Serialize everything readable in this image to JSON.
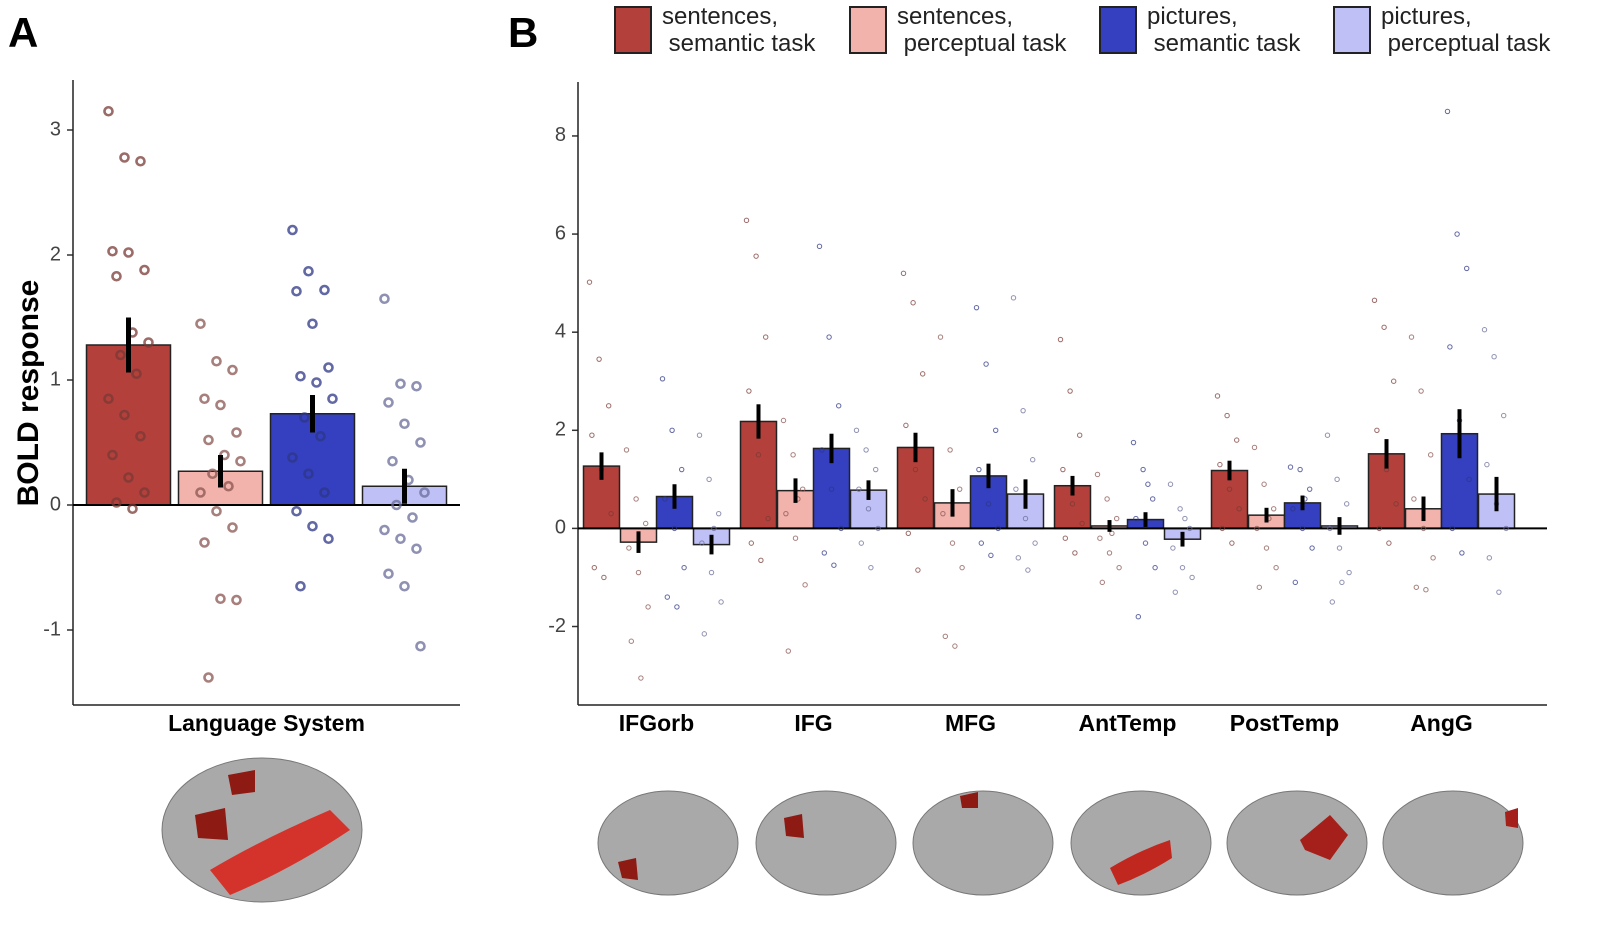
{
  "chart_data": [
    {
      "type": "bar",
      "panel_label": "A",
      "y_label": "BOLD response",
      "categories": [
        "Language System"
      ],
      "ylim": [
        -1.6,
        3.4
      ],
      "yticks": [
        -1,
        0,
        1,
        2,
        3
      ],
      "series": [
        {
          "color": "#b3403b",
          "values": [
            1.28
          ],
          "errors": [
            0.22
          ],
          "points": [
            [
              3.15,
              2.78,
              2.75,
              2.03,
              2.02,
              1.88,
              1.83,
              1.38,
              1.3,
              1.2,
              1.05,
              0.85,
              0.72,
              0.55,
              0.4,
              0.22,
              0.1,
              0.02,
              -0.03
            ]
          ]
        },
        {
          "color": "#f3b3ad",
          "values": [
            0.27
          ],
          "errors": [
            0.13
          ],
          "points": [
            [
              1.45,
              1.15,
              1.08,
              0.85,
              0.8,
              0.58,
              0.52,
              0.4,
              0.35,
              0.25,
              0.15,
              0.1,
              -0.05,
              -0.18,
              -0.3,
              -0.75,
              -0.76,
              -1.38
            ]
          ]
        },
        {
          "color": "#3440bf",
          "values": [
            0.73
          ],
          "errors": [
            0.15
          ],
          "points": [
            [
              2.2,
              1.87,
              1.72,
              1.71,
              1.45,
              1.1,
              1.03,
              0.98,
              0.85,
              0.7,
              0.55,
              0.38,
              0.25,
              0.1,
              -0.05,
              -0.17,
              -0.27,
              -0.65
            ]
          ]
        },
        {
          "color": "#bfc0f6",
          "values": [
            0.15
          ],
          "errors": [
            0.14
          ],
          "points": [
            [
              1.65,
              0.97,
              0.95,
              0.82,
              0.65,
              0.5,
              0.35,
              0.2,
              0.1,
              0.0,
              -0.1,
              -0.2,
              -0.27,
              -0.35,
              -0.55,
              -0.65,
              -1.13
            ]
          ]
        }
      ]
    },
    {
      "type": "bar",
      "panel_label": "B",
      "categories": [
        "IFGorb",
        "IFG",
        "MFG",
        "AntTemp",
        "PostTemp",
        "AngG"
      ],
      "ylim": [
        -3.6,
        9.1
      ],
      "yticks": [
        -2,
        0,
        2,
        4,
        6,
        8
      ],
      "series": [
        {
          "name": "sentences,\n semantic task",
          "color": "#b3403b",
          "values": [
            1.27,
            2.18,
            1.65,
            0.87,
            1.18,
            1.52
          ],
          "errors": [
            0.28,
            0.35,
            0.3,
            0.2,
            0.2,
            0.3
          ],
          "points": [
            [
              5.02,
              3.45,
              2.5,
              1.9,
              1.2,
              0.3,
              -0.8,
              -1.0
            ],
            [
              6.28,
              5.55,
              3.9,
              2.8,
              1.5,
              0.2,
              -0.3,
              -0.65
            ],
            [
              5.2,
              4.6,
              3.15,
              2.1,
              1.2,
              0.6,
              -0.1,
              -0.85
            ],
            [
              3.85,
              2.8,
              1.9,
              1.2,
              0.5,
              0.1,
              -0.2,
              -0.5
            ],
            [
              2.7,
              2.3,
              1.8,
              1.3,
              0.8,
              0.4,
              0.0,
              -0.3
            ],
            [
              4.65,
              4.1,
              3.0,
              2.0,
              1.2,
              0.5,
              0.0,
              -0.3
            ]
          ]
        },
        {
          "name": "sentences,\n perceptual task",
          "color": "#f3b3ad",
          "values": [
            -0.28,
            0.77,
            0.52,
            0.05,
            0.27,
            0.4
          ],
          "errors": [
            0.22,
            0.25,
            0.28,
            0.12,
            0.15,
            0.25
          ],
          "points": [
            [
              1.6,
              0.6,
              0.1,
              -0.4,
              -0.9,
              -1.6,
              -2.3,
              -3.05
            ],
            [
              2.2,
              1.5,
              0.8,
              0.3,
              -0.2,
              -1.15,
              -2.5,
              0.6
            ],
            [
              3.9,
              1.6,
              0.8,
              0.3,
              -0.3,
              -0.8,
              -2.2,
              -2.4
            ],
            [
              1.1,
              0.6,
              0.2,
              -0.2,
              -0.5,
              -0.8,
              -1.1,
              -0.1
            ],
            [
              1.65,
              0.9,
              0.4,
              0.0,
              -0.4,
              -0.8,
              -1.2,
              0.2
            ],
            [
              3.9,
              2.8,
              1.5,
              0.6,
              0.0,
              -0.6,
              -1.2,
              -1.25
            ]
          ]
        },
        {
          "name": "pictures,\n semantic task",
          "color": "#3440bf",
          "values": [
            0.65,
            1.63,
            1.07,
            0.18,
            0.52,
            1.93
          ],
          "errors": [
            0.25,
            0.3,
            0.25,
            0.15,
            0.15,
            0.5
          ],
          "points": [
            [
              3.05,
              2.0,
              1.2,
              0.6,
              0.0,
              -0.8,
              -1.4,
              -1.6
            ],
            [
              5.75,
              3.9,
              2.5,
              1.6,
              0.8,
              0.0,
              -0.5,
              -0.75
            ],
            [
              4.5,
              3.35,
              2.0,
              1.2,
              0.5,
              0.0,
              -0.3,
              -0.55
            ],
            [
              1.75,
              1.2,
              0.6,
              0.2,
              -0.3,
              -0.8,
              -1.8,
              0.9
            ],
            [
              1.25,
              1.2,
              0.8,
              0.4,
              0.0,
              -0.4,
              -1.1,
              0.6
            ],
            [
              8.5,
              6.0,
              5.3,
              3.7,
              2.2,
              1.0,
              0.0,
              -0.5
            ]
          ]
        },
        {
          "name": "pictures,\n perceptual task",
          "color": "#bfc0f6",
          "values": [
            -0.33,
            0.78,
            0.7,
            -0.22,
            0.05,
            0.7
          ],
          "errors": [
            0.2,
            0.2,
            0.3,
            0.15,
            0.18,
            0.35
          ],
          "points": [
            [
              1.9,
              1.0,
              0.3,
              -0.3,
              -0.9,
              -1.5,
              -2.15,
              0.0
            ],
            [
              2.0,
              1.6,
              1.2,
              0.8,
              0.4,
              0.0,
              -0.3,
              -0.8
            ],
            [
              4.7,
              2.4,
              1.4,
              0.8,
              0.2,
              -0.3,
              -0.6,
              -0.85
            ],
            [
              0.9,
              0.4,
              0.0,
              -0.4,
              -0.8,
              -1.0,
              -1.3,
              0.2
            ],
            [
              1.9,
              1.0,
              0.5,
              0.0,
              -0.4,
              -0.9,
              -1.5,
              -1.1
            ],
            [
              4.05,
              3.5,
              2.3,
              1.3,
              0.5,
              0.0,
              -0.6,
              -1.3
            ]
          ]
        }
      ]
    }
  ]
}
